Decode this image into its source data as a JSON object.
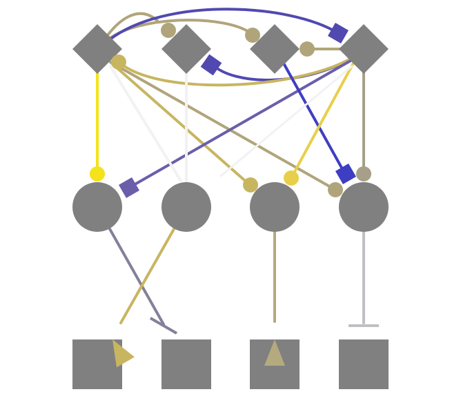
{
  "diagram": {
    "background": "#ffffff",
    "node_color": "#808080",
    "nodes": [
      {
        "id": "d1",
        "shape": "diamond"
      },
      {
        "id": "d2",
        "shape": "diamond"
      },
      {
        "id": "d3",
        "shape": "diamond"
      },
      {
        "id": "d4",
        "shape": "diamond"
      },
      {
        "id": "c1",
        "shape": "circle"
      },
      {
        "id": "c2",
        "shape": "circle"
      },
      {
        "id": "c3",
        "shape": "circle"
      },
      {
        "id": "c4",
        "shape": "circle"
      },
      {
        "id": "s1",
        "shape": "square"
      },
      {
        "id": "s2",
        "shape": "square"
      },
      {
        "id": "s3",
        "shape": "square"
      },
      {
        "id": "s4",
        "shape": "square"
      }
    ],
    "edges": [
      {
        "from": "d1",
        "to": "d2",
        "color": "#b0a57a",
        "end": "circle"
      },
      {
        "from": "d1",
        "to": "d3",
        "color": "#b0a57a",
        "end": "circle"
      },
      {
        "from": "d4",
        "to": "d3",
        "color": "#b0a57a",
        "end": "circle"
      },
      {
        "from": "d1",
        "to": "d4",
        "color": "#5149b0",
        "end": "square"
      },
      {
        "from": "d4",
        "to": "d2",
        "color": "#5149b0",
        "end": "square"
      },
      {
        "from": "d4",
        "to": "d1",
        "color": "#c8b560",
        "end": "circle"
      },
      {
        "from": "d1",
        "to": "c1",
        "color": "#f4e21a",
        "end": "circle"
      },
      {
        "from": "d1",
        "to": "c3",
        "color": "#c8b560",
        "end": "circle"
      },
      {
        "from": "d1",
        "to": "c4",
        "color": "#b0a57a",
        "end": "circle"
      },
      {
        "from": "d4",
        "to": "c1",
        "color": "#6a5eab",
        "end": "square"
      },
      {
        "from": "d3",
        "to": "c4",
        "color": "#3e3ec2",
        "end": "square"
      },
      {
        "from": "d4",
        "to": "c3",
        "color": "#e8cf4a",
        "end": "circle"
      },
      {
        "from": "d4",
        "to": "c4",
        "color": "#a89f88",
        "end": "circle"
      },
      {
        "from": "d1",
        "to": "c2",
        "color": "#f2f2f2",
        "end": "none"
      },
      {
        "from": "d2",
        "to": "c2",
        "color": "#f2f2f2",
        "end": "none"
      },
      {
        "from": "d4",
        "to": "c2",
        "color": "#f2f2f2",
        "end": "none"
      },
      {
        "from": "c1",
        "to": "s2",
        "color": "#838099",
        "end": "bar"
      },
      {
        "from": "c2",
        "to": "s1",
        "color": "#c8b560",
        "end": "arrow"
      },
      {
        "from": "c3",
        "to": "s3",
        "color": "#b5aa7e",
        "end": "arrow"
      },
      {
        "from": "c4",
        "to": "s4",
        "color": "#bfbfc4",
        "end": "bar"
      }
    ]
  }
}
